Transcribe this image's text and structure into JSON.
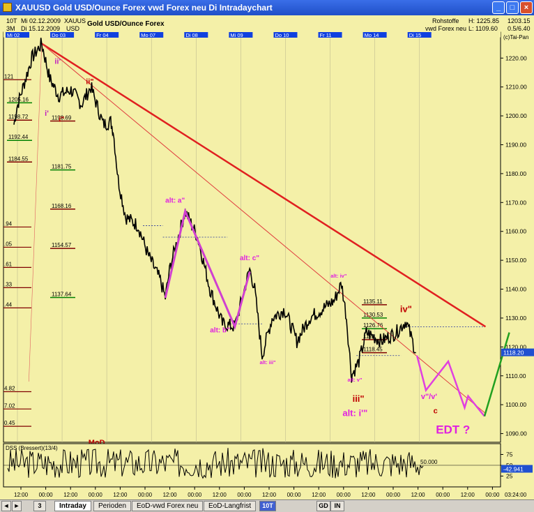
{
  "window": {
    "title": "XAUUSD Gold USD/Ounce  Forex vwd Forex neu Di Intradaychart",
    "minimize": "_",
    "maximize": "□",
    "close": "×"
  },
  "header": {
    "period1": "10T",
    "period2": "3M",
    "from": "Mi 02.12.2009",
    "to": "Di 15.12.2009",
    "symbol": "XAUUS",
    "currency": "USD",
    "instrument": "Gold USD/Ounce  Forex",
    "group": "Rohstoffe",
    "source": "vwd Forex neu",
    "high": "H: 1225.85",
    "low": "L: 1109.60",
    "last": "1203.15",
    "params": "0.5/6.40",
    "copyright": "(c)Tai-Pan",
    "price_tag": "1118.20"
  },
  "chart_data": {
    "type": "line",
    "title": "Gold USD/Ounce  Forex",
    "ylim": [
      1087,
      1229
    ],
    "y_ticks": [
      1090,
      1100,
      1110,
      1120,
      1130,
      1140,
      1150,
      1160,
      1170,
      1180,
      1190,
      1200,
      1210,
      1220
    ],
    "x_day_labels": [
      "Mi 02",
      "Do 03",
      "Fr 04",
      "Mo 07",
      "Di 08",
      "Mi 09",
      "Do 10",
      "Fr 11",
      "Mo 14",
      "Di 15"
    ],
    "x_time_labels": [
      "12:00",
      "00:00",
      "12:00",
      "00:00",
      "12:00",
      "00:00",
      "12:00",
      "00:00",
      "12:00",
      "00:00",
      "12:00",
      "00:00",
      "12:00",
      "00:00",
      "12:00",
      "00:00",
      "12:00",
      "00:00",
      "12:00",
      "00:00",
      "03:24:00"
    ],
    "series_key_points": [
      {
        "x": 0.0,
        "y": 1197
      },
      {
        "x": 0.06,
        "y": 1203
      },
      {
        "x": 0.36,
        "y": 1220
      },
      {
        "x": 0.56,
        "y": 1225
      },
      {
        "x": 0.72,
        "y": 1213
      },
      {
        "x": 0.9,
        "y": 1207
      },
      {
        "x": 1.15,
        "y": 1209
      },
      {
        "x": 1.36,
        "y": 1204
      },
      {
        "x": 1.55,
        "y": 1210
      },
      {
        "x": 1.8,
        "y": 1197
      },
      {
        "x": 1.95,
        "y": 1198
      },
      {
        "x": 2.0,
        "y": 1195
      },
      {
        "x": 2.1,
        "y": 1178
      },
      {
        "x": 2.25,
        "y": 1165
      },
      {
        "x": 2.5,
        "y": 1162
      },
      {
        "x": 2.7,
        "y": 1152
      },
      {
        "x": 2.95,
        "y": 1143
      },
      {
        "x": 3.05,
        "y": 1137
      },
      {
        "x": 3.15,
        "y": 1148
      },
      {
        "x": 3.45,
        "y": 1167
      },
      {
        "x": 3.7,
        "y": 1158
      },
      {
        "x": 3.95,
        "y": 1140
      },
      {
        "x": 4.2,
        "y": 1128
      },
      {
        "x": 4.45,
        "y": 1127
      },
      {
        "x": 4.75,
        "y": 1147
      },
      {
        "x": 4.85,
        "y": 1140
      },
      {
        "x": 5.0,
        "y": 1117
      },
      {
        "x": 5.2,
        "y": 1130
      },
      {
        "x": 5.45,
        "y": 1133
      },
      {
        "x": 5.7,
        "y": 1122
      },
      {
        "x": 5.95,
        "y": 1130
      },
      {
        "x": 6.2,
        "y": 1133
      },
      {
        "x": 6.45,
        "y": 1136
      },
      {
        "x": 6.6,
        "y": 1142
      },
      {
        "x": 6.7,
        "y": 1130
      },
      {
        "x": 6.8,
        "y": 1110
      },
      {
        "x": 6.95,
        "y": 1115
      },
      {
        "x": 7.1,
        "y": 1125
      },
      {
        "x": 7.4,
        "y": 1122
      },
      {
        "x": 7.7,
        "y": 1125
      },
      {
        "x": 7.9,
        "y": 1129
      },
      {
        "x": 8.1,
        "y": 1118
      }
    ],
    "price_labels": [
      {
        "text": "1205.16",
        "y": 1205,
        "color": "#008000"
      },
      {
        "text": "1198.72",
        "y": 1199,
        "color": "#800000"
      },
      {
        "text": "1192.44",
        "y": 1192,
        "color": "#008000"
      },
      {
        "text": "1184.55",
        "y": 1184.5,
        "color": "#800000"
      },
      {
        "text": "1198.69",
        "y": 1198.7,
        "color": "#800000"
      },
      {
        "text": "1181.75",
        "y": 1181.75,
        "color": "#008000"
      },
      {
        "text": "1168.16",
        "y": 1168.2,
        "color": "#800000"
      },
      {
        "text": "1154.57",
        "y": 1154.6,
        "color": "#800000"
      },
      {
        "text": "1137.64",
        "y": 1137.6,
        "color": "#008000"
      },
      {
        "text": "1135.11",
        "y": 1135.1,
        "color": "#800000"
      },
      {
        "text": "1130.53",
        "y": 1130.5,
        "color": "#008000"
      },
      {
        "text": "1126.76",
        "y": 1126.8,
        "color": "#008000"
      },
      {
        "text": "1123",
        "y": 1123,
        "color": "#800000"
      },
      {
        "text": "1118.45",
        "y": 1118.5,
        "color": "#800000"
      }
    ],
    "partial_left_labels": [
      "121",
      ".94",
      ".05",
      ".61",
      ".33",
      ".44",
      "4.82",
      "7.02",
      "0.45"
    ],
    "annotations": [
      {
        "text": "ii'",
        "x": 0.82,
        "y": 1218,
        "color": "#c020c0"
      },
      {
        "text": "i'",
        "x": 0.62,
        "y": 1200,
        "color": "#c020c0"
      },
      {
        "text": "i\"",
        "x": 0.9,
        "y": 1198,
        "color": "#c00000"
      },
      {
        "text": "ii\"",
        "x": 1.45,
        "y": 1211,
        "color": "#c00000"
      },
      {
        "text": "alt: a\"",
        "x": 3.05,
        "y": 1170,
        "color": "#e020e0"
      },
      {
        "text": "alt: b\"",
        "x": 3.95,
        "y": 1125,
        "color": "#e020e0"
      },
      {
        "text": "alt: c\"",
        "x": 4.55,
        "y": 1150,
        "color": "#e020e0"
      },
      {
        "text": "alt: iii\"",
        "x": 4.95,
        "y": 1114,
        "color": "#e020e0"
      },
      {
        "text": "alt: iv\"",
        "x": 6.38,
        "y": 1144,
        "color": "#e020e0"
      },
      {
        "text": "alt: v\"",
        "x": 6.72,
        "y": 1108,
        "color": "#e020e0"
      },
      {
        "text": "iii\"",
        "x": 6.82,
        "y": 1101,
        "color": "#c00000"
      },
      {
        "text": "alt: i'\"",
        "x": 6.62,
        "y": 1096,
        "color": "#e020e0"
      },
      {
        "text": "iv\"",
        "x": 7.78,
        "y": 1132,
        "color": "#c00000"
      },
      {
        "text": "v\"/v'",
        "x": 8.2,
        "y": 1102,
        "color": "#e020e0"
      },
      {
        "text": "c",
        "x": 8.45,
        "y": 1097,
        "color": "#c00000"
      },
      {
        "text": "EDT ?",
        "x": 8.5,
        "y": 1090,
        "color": "#e020e0"
      },
      {
        "text": "MoD",
        "x": 1.5,
        "y": 1086,
        "color": "#c00000"
      }
    ],
    "wave_path": [
      {
        "x": 3.05,
        "y": 1137
      },
      {
        "x": 3.45,
        "y": 1167
      },
      {
        "x": 4.45,
        "y": 1127
      },
      {
        "x": 4.75,
        "y": 1146
      }
    ],
    "forecast_path": [
      {
        "x": 8.12,
        "y": 1117
      },
      {
        "x": 8.3,
        "y": 1105
      },
      {
        "x": 8.75,
        "y": 1115
      },
      {
        "x": 9.08,
        "y": 1099
      },
      {
        "x": 9.15,
        "y": 1103
      },
      {
        "x": 9.48,
        "y": 1096
      }
    ],
    "green_path": [
      {
        "x": 9.48,
        "y": 1096
      },
      {
        "x": 9.98,
        "y": 1125
      }
    ],
    "trend_lines": [
      {
        "name": "thick",
        "x1": 0.56,
        "y1": 1225,
        "x2": 9.5,
        "y2": 1127,
        "color": "#e02020",
        "w": 2.5
      },
      {
        "name": "thin",
        "x1": 0.56,
        "y1": 1225,
        "x2": 9.5,
        "y2": 1097,
        "color": "#e04040",
        "w": 1
      }
    ],
    "dss": {
      "label": "DSS (Bressert)(13/4)",
      "ylim": [
        0,
        100
      ],
      "ticks": [
        25,
        50,
        75
      ],
      "level_text": "50.000",
      "value": -42.941,
      "value_text": "-42.941"
    }
  },
  "tabs": {
    "intraday": "Intraday",
    "perioden": "Perioden",
    "eod_vwd": "EoD-vwd Forex neu",
    "eod_langfrist": "EoD-Langfrist",
    "period_sel": "10T",
    "btn_gd": "GD",
    "btn_in": "IN",
    "nav_left": "◄",
    "nav_right": "►",
    "zoom": "3"
  }
}
